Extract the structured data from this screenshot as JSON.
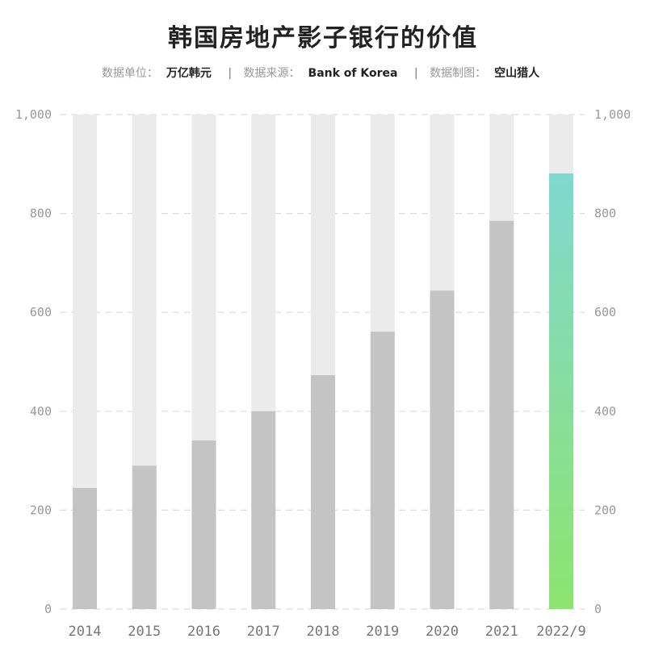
{
  "title": "韩国房地产影子银行的价值",
  "subtitle": {
    "unit_label": "数据单位：",
    "unit_value": "万亿韩元",
    "source_label": "数据来源：",
    "source_value": "Bank of Korea",
    "author_label": "数据制图：",
    "author_value": "空山猎人",
    "separator": "|"
  },
  "chart_data": {
    "type": "bar",
    "title": "韩国房地产影子银行的价值",
    "categories": [
      "2014",
      "2015",
      "2016",
      "2017",
      "2018",
      "2019",
      "2020",
      "2021",
      "2022/9"
    ],
    "values": [
      245,
      290,
      341,
      400,
      473,
      561,
      644,
      785,
      881
    ],
    "ylim": [
      0,
      1000
    ],
    "yticks": [
      0,
      200,
      400,
      600,
      800,
      1000
    ],
    "ytick_labels": [
      "0",
      "200",
      "400",
      "600",
      "800",
      "1,000"
    ],
    "grid": true,
    "y_axis_both_sides": true,
    "colors": {
      "bar": "#c4c4c4",
      "background_bar": "#ebebeb",
      "highlight_top": "#80d8d0",
      "highlight_bottom": "#8de46e",
      "grid": "#dddddd"
    },
    "highlight_category": "2022/9"
  }
}
